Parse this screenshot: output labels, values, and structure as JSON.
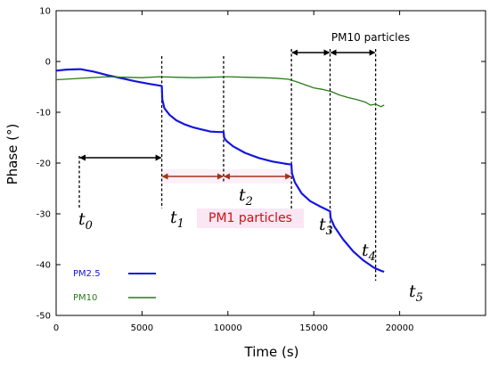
{
  "chart_data": {
    "type": "line",
    "xlabel": "Time (s)",
    "ylabel": "Phase (°)",
    "xlim": [
      0,
      25000
    ],
    "ylim": [
      -50,
      10
    ],
    "xticks": [
      0,
      5000,
      10000,
      15000,
      20000
    ],
    "yticks": [
      10,
      0,
      -10,
      -20,
      -30,
      -40,
      -50
    ],
    "series": [
      {
        "name": "PM2.5",
        "color": "#1515e0",
        "x": [
          0,
          600,
          1400,
          2200,
          3000,
          3800,
          4600,
          5400,
          6150,
          6180,
          6300,
          6600,
          7000,
          7500,
          8000,
          8500,
          9000,
          9500,
          9750,
          9780,
          9900,
          10300,
          11000,
          11800,
          12600,
          13300,
          13700,
          13730,
          13900,
          14300,
          14800,
          15400,
          15950,
          15980,
          16200,
          16700,
          17300,
          17900,
          18500,
          18900,
          19100
        ],
        "y": [
          -1.8,
          -1.6,
          -1.5,
          -2.0,
          -2.7,
          -3.3,
          -3.9,
          -4.4,
          -4.8,
          -7.5,
          -9.2,
          -10.5,
          -11.6,
          -12.4,
          -13.0,
          -13.4,
          -13.8,
          -13.9,
          -13.9,
          -15.0,
          -15.6,
          -16.7,
          -18.0,
          -19.0,
          -19.7,
          -20.1,
          -20.3,
          -22.0,
          -23.8,
          -26.0,
          -27.5,
          -28.6,
          -29.5,
          -30.8,
          -32.5,
          -35.0,
          -37.4,
          -39.2,
          -40.6,
          -41.2,
          -41.4
        ]
      },
      {
        "name": "PM10",
        "color": "#2a7a1a",
        "x": [
          0,
          1000,
          2000,
          3000,
          4000,
          5000,
          6000,
          7000,
          8000,
          9000,
          10000,
          11000,
          12000,
          12800,
          13500,
          14000,
          14500,
          15000,
          15500,
          16000,
          16500,
          17000,
          17500,
          18000,
          18300,
          18600,
          18900,
          19100
        ],
        "y": [
          -3.6,
          -3.4,
          -3.2,
          -3.0,
          -3.1,
          -3.2,
          -3.0,
          -3.1,
          -3.2,
          -3.1,
          -3.0,
          -3.1,
          -3.2,
          -3.3,
          -3.5,
          -4.0,
          -4.6,
          -5.2,
          -5.5,
          -5.9,
          -6.6,
          -7.1,
          -7.5,
          -8.0,
          -8.6,
          -8.4,
          -8.9,
          -8.6
        ]
      }
    ],
    "legend": {
      "position": "bottom-left"
    },
    "annotations": {
      "markers": [
        {
          "label": "t",
          "sub": "0",
          "x": 1350
        },
        {
          "label": "t",
          "sub": "1",
          "x": 6150
        },
        {
          "label": "t",
          "sub": "2",
          "x": 9750
        },
        {
          "label": "t",
          "sub": "3",
          "x": 13700
        },
        {
          "label": "t",
          "sub": "4",
          "x": 15950
        },
        {
          "label": "t",
          "sub": "5",
          "x": 18600
        }
      ],
      "pm1_label": "PM1 particles",
      "pm10_label": "PM10 particles"
    }
  },
  "colors": {
    "pm1_text": "#cc1111",
    "pm1_arrow": "#a0331a",
    "pm1_highlight": "#fbe6f4"
  }
}
